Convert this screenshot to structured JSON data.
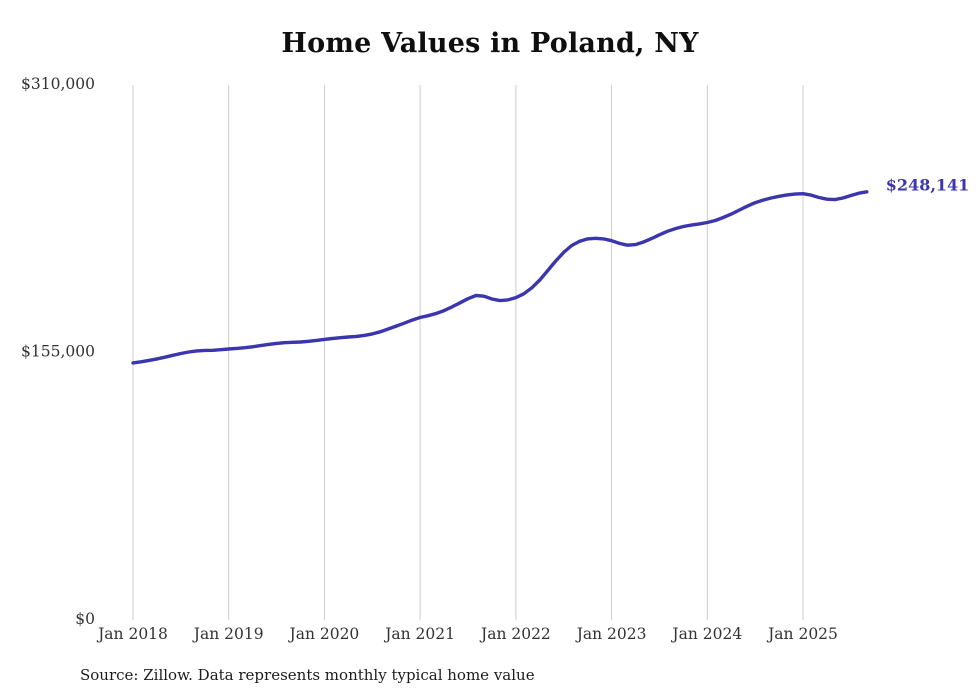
{
  "page": {
    "title": "Home Values in Poland, NY",
    "source_note": "Source: Zillow. Data represents monthly typical home value"
  },
  "chart_data": {
    "type": "line",
    "title": "Home Values in Poland, NY",
    "series_name": "Typical home value",
    "frequency": "monthly",
    "x_start": "Jan 2018",
    "x_end": "Sep 2025",
    "x_ticks": [
      "Jan 2018",
      "Jan 2019",
      "Jan 2020",
      "Jan 2021",
      "Jan 2022",
      "Jan 2023",
      "Jan 2024",
      "Jan 2025"
    ],
    "y_ticks": [
      "$0",
      "$155,000",
      "$310,000"
    ],
    "y_tick_values": [
      0,
      155000,
      310000
    ],
    "ylim": [
      0,
      310000
    ],
    "values": [
      149000,
      149600,
      150400,
      151300,
      152300,
      153400,
      154400,
      155300,
      155900,
      156200,
      156300,
      156600,
      157000,
      157400,
      157800,
      158300,
      159000,
      159700,
      160300,
      160700,
      160900,
      161100,
      161500,
      162000,
      162600,
      163100,
      163600,
      164000,
      164300,
      164900,
      165800,
      167000,
      168600,
      170300,
      172000,
      173800,
      175300,
      176300,
      177600,
      179300,
      181400,
      183800,
      186200,
      188000,
      187600,
      186000,
      185100,
      185500,
      186800,
      189000,
      192500,
      197000,
      202500,
      208000,
      213000,
      217000,
      219500,
      220800,
      221200,
      220800,
      219800,
      218200,
      217200,
      217500,
      219000,
      221000,
      223200,
      225200,
      226800,
      228000,
      228800,
      229500,
      230300,
      231500,
      233200,
      235200,
      237500,
      239800,
      241800,
      243300,
      244500,
      245500,
      246300,
      246800,
      247000,
      246200,
      244800,
      243800,
      243600,
      244500,
      246000,
      247300,
      248141
    ],
    "final_value": 248141,
    "end_label": "$248,141",
    "line_color": "#3b35ae",
    "grid": "vertical-only",
    "legend": "none",
    "source_note": "Source: Zillow. Data represents monthly typical home value"
  }
}
